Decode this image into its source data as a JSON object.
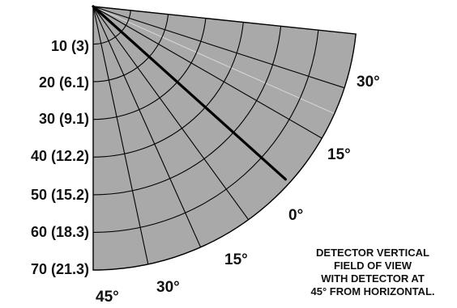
{
  "diagram": {
    "distance_labels": [
      "10 (3)",
      "20 (6.1)",
      "30 (9.1)",
      "40 (12.2)",
      "50 (15.2)",
      "60 (18.3)",
      "70 (21.3)"
    ],
    "angle_labels": {
      "bottom_left_45": "45°",
      "bottom_30": "30°",
      "lower_15": "15°",
      "center_0": "0°",
      "upper_15": "15°",
      "upper_30": "30°"
    },
    "caption_lines": [
      "DETECTOR VERTICAL",
      "FIELD OF VIEW",
      "WITH DETECTOR AT",
      "45° FROM HORIZONTAL."
    ],
    "colors": {
      "sector_fill": "#a9a9a9",
      "line": "#000000",
      "text": "#111111"
    }
  }
}
